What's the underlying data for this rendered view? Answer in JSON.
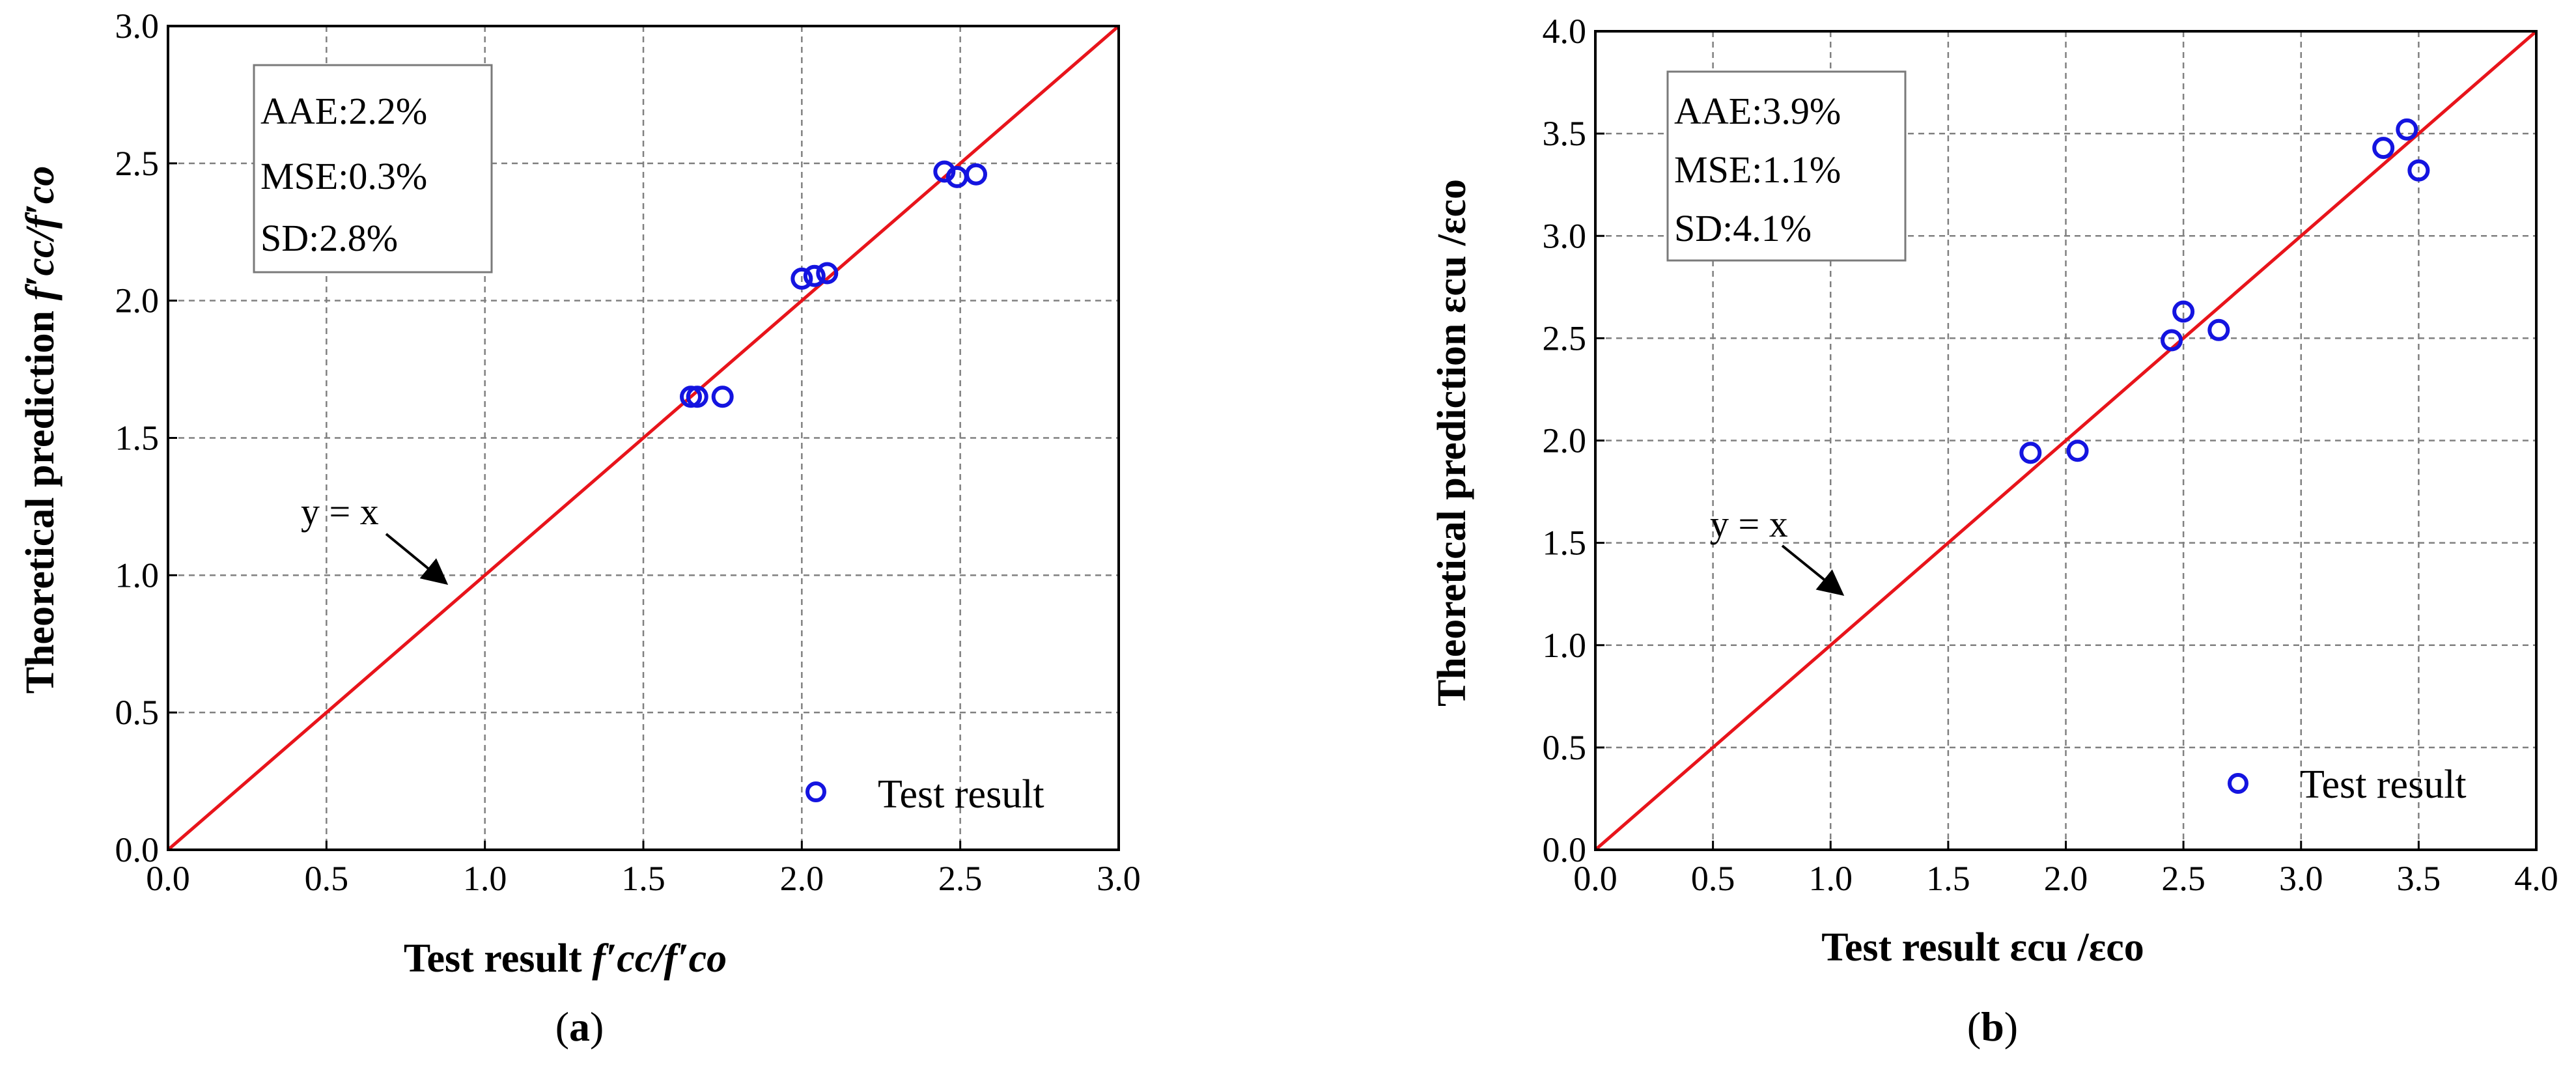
{
  "chart_data": [
    {
      "type": "scatter",
      "panel_label": "a",
      "xlim": [
        0.0,
        3.0
      ],
      "ylim": [
        0.0,
        3.0
      ],
      "xticks": [
        "0.0",
        "0.5",
        "1.0",
        "1.5",
        "2.0",
        "2.5",
        "3.0"
      ],
      "yticks": [
        "0.0",
        "0.5",
        "1.0",
        "1.5",
        "2.0",
        "2.5",
        "3.0"
      ],
      "xlabel": {
        "prefix": "Test result ",
        "math": "f′cc/f′co"
      },
      "ylabel": {
        "prefix": "Theoretical prediction ",
        "math": "f′cc/f′co"
      },
      "stats": [
        "AAE:2.2%",
        "MSE:0.3%",
        "SD:2.8%"
      ],
      "annotation": "y = x",
      "legend": "Test result",
      "grid": true,
      "series": [
        {
          "name": "Test result",
          "points": [
            [
              1.65,
              1.65
            ],
            [
              1.67,
              1.65
            ],
            [
              1.75,
              1.65
            ],
            [
              2.0,
              2.08
            ],
            [
              2.04,
              2.09
            ],
            [
              2.08,
              2.1
            ],
            [
              2.45,
              2.47
            ],
            [
              2.49,
              2.45
            ],
            [
              2.55,
              2.46
            ]
          ]
        }
      ],
      "colors": {
        "identity": "#e8141b",
        "marker": "#1414e0"
      }
    },
    {
      "type": "scatter",
      "panel_label": "b",
      "xlim": [
        0.0,
        4.0
      ],
      "ylim": [
        0.0,
        4.0
      ],
      "xticks": [
        "0.0",
        "0.5",
        "1.0",
        "1.5",
        "2.0",
        "2.5",
        "3.0",
        "3.5",
        "4.0"
      ],
      "yticks": [
        "0.0",
        "0.5",
        "1.0",
        "1.5",
        "2.0",
        "2.5",
        "3.0",
        "3.5",
        "4.0"
      ],
      "xlabel": {
        "prefix": "Test result ",
        "math": "εcu /εco"
      },
      "ylabel": {
        "prefix": "Theoretical prediction ",
        "math": "εcu /εco"
      },
      "stats": [
        "AAE:3.9%",
        "MSE:1.1%",
        "SD:4.1%"
      ],
      "annotation": "y = x",
      "legend": "Test result",
      "grid": true,
      "series": [
        {
          "name": "Test result",
          "points": [
            [
              1.85,
              1.94
            ],
            [
              2.05,
              1.95
            ],
            [
              2.45,
              2.49
            ],
            [
              2.5,
              2.63
            ],
            [
              2.65,
              2.54
            ],
            [
              3.35,
              3.43
            ],
            [
              3.45,
              3.52
            ],
            [
              3.5,
              3.32
            ]
          ]
        }
      ],
      "colors": {
        "identity": "#e8141b",
        "marker": "#1414e0"
      }
    }
  ]
}
